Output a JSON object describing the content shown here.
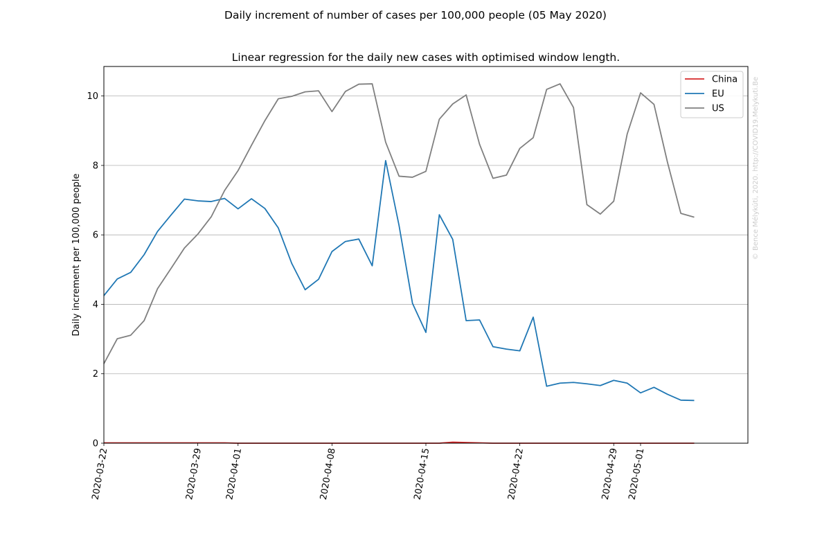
{
  "chart_data": {
    "type": "line",
    "suptitle": "Daily increment of number of cases per 100,000 people (05 May 2020)",
    "title": "Linear regression for the daily new cases with optimised window length.",
    "xlabel": "",
    "ylabel": "Daily increment per 100,000 people",
    "ylim": [
      0,
      10.85
    ],
    "yticks": [
      0,
      2,
      4,
      6,
      8,
      10
    ],
    "xlim_dates": [
      "2020-03-22",
      "2020-05-09"
    ],
    "xticks": [
      "2020-03-22",
      "2020-03-29",
      "2020-04-01",
      "2020-04-08",
      "2020-04-15",
      "2020-04-22",
      "2020-04-29",
      "2020-05-01"
    ],
    "grid": "y",
    "legend_position": "upper right",
    "watermark": "© Bence Mélykúti, 2020. http://COVID19.Melykuti.Be",
    "x": [
      "2020-03-22",
      "2020-03-23",
      "2020-03-24",
      "2020-03-25",
      "2020-03-26",
      "2020-03-27",
      "2020-03-28",
      "2020-03-29",
      "2020-03-30",
      "2020-03-31",
      "2020-04-01",
      "2020-04-02",
      "2020-04-03",
      "2020-04-04",
      "2020-04-05",
      "2020-04-06",
      "2020-04-07",
      "2020-04-08",
      "2020-04-09",
      "2020-04-10",
      "2020-04-11",
      "2020-04-12",
      "2020-04-13",
      "2020-04-14",
      "2020-04-15",
      "2020-04-16",
      "2020-04-17",
      "2020-04-18",
      "2020-04-19",
      "2020-04-20",
      "2020-04-21",
      "2020-04-22",
      "2020-04-23",
      "2020-04-24",
      "2020-04-25",
      "2020-04-26",
      "2020-04-27",
      "2020-04-28",
      "2020-04-29",
      "2020-04-30",
      "2020-05-01",
      "2020-05-02",
      "2020-05-03",
      "2020-05-04",
      "2020-05-05"
    ],
    "series": [
      {
        "name": "China",
        "color": "#d62728",
        "values": [
          0.01,
          0.01,
          0.01,
          0.01,
          0.01,
          0.01,
          0.01,
          0.01,
          0.01,
          0.01,
          0.0,
          0.0,
          0.0,
          0.0,
          0.0,
          0.0,
          0.0,
          0.0,
          0.0,
          0.0,
          0.0,
          0.0,
          0.0,
          0.0,
          0.0,
          0.0,
          0.03,
          0.02,
          0.01,
          0.0,
          0.0,
          0.0,
          0.0,
          0.0,
          0.0,
          0.0,
          0.0,
          0.0,
          0.0,
          0.0,
          0.0,
          0.0,
          0.0,
          0.0,
          0.0
        ]
      },
      {
        "name": "EU",
        "color": "#1f77b4",
        "values": [
          4.25,
          4.73,
          4.92,
          5.43,
          6.1,
          6.57,
          7.03,
          6.98,
          6.96,
          7.05,
          6.75,
          7.04,
          6.76,
          6.2,
          5.18,
          4.42,
          4.72,
          5.52,
          5.81,
          5.88,
          5.11,
          8.14,
          6.27,
          4.03,
          3.19,
          6.58,
          5.87,
          3.53,
          3.55,
          2.78,
          2.71,
          2.66,
          3.63,
          1.64,
          1.73,
          1.75,
          1.71,
          1.66,
          1.81,
          1.73,
          1.45,
          1.61,
          1.41,
          1.24,
          1.23
        ]
      },
      {
        "name": "US",
        "color": "#7f7f7f",
        "values": [
          2.29,
          3.01,
          3.11,
          3.53,
          4.45,
          5.03,
          5.62,
          6.02,
          6.52,
          7.28,
          7.85,
          8.58,
          9.29,
          9.92,
          9.99,
          10.12,
          10.15,
          9.55,
          10.13,
          10.34,
          10.35,
          8.67,
          7.69,
          7.66,
          7.83,
          9.33,
          9.77,
          10.03,
          8.61,
          7.63,
          7.72,
          8.49,
          8.8,
          10.19,
          10.35,
          9.67,
          6.87,
          6.6,
          6.97,
          8.9,
          10.09,
          9.76,
          8.1,
          6.62,
          6.51
        ]
      }
    ]
  }
}
